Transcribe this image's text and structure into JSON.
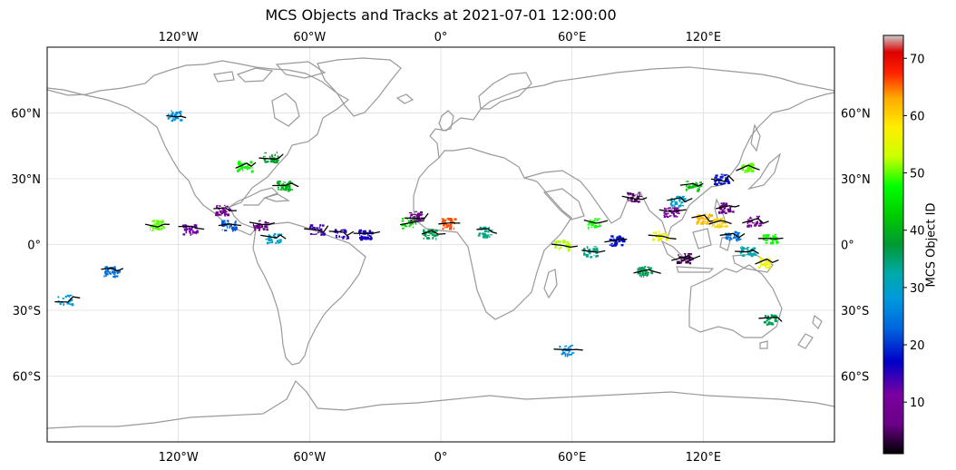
{
  "title": "MCS Objects and Tracks at 2021-07-01 12:00:00",
  "map": {
    "projection": "PlateCarree",
    "lon_range": [
      -180,
      180
    ],
    "lat_range": [
      -90,
      90
    ],
    "gridlines": true,
    "coastline_color": "#999999",
    "gridline_color": "#dddddd",
    "track_color": "#000000",
    "lon_ticks": [
      {
        "value": -120,
        "label": "120°W"
      },
      {
        "value": -60,
        "label": "60°W"
      },
      {
        "value": 0,
        "label": "0°"
      },
      {
        "value": 60,
        "label": "60°E"
      },
      {
        "value": 120,
        "label": "120°E"
      }
    ],
    "lat_ticks": [
      {
        "value": 60,
        "label": "60°N"
      },
      {
        "value": 30,
        "label": "30°N"
      },
      {
        "value": 0,
        "label": "0°"
      },
      {
        "value": -30,
        "label": "30°S"
      },
      {
        "value": -60,
        "label": "60°S"
      }
    ]
  },
  "colorbar": {
    "label": "MCS Object ID",
    "colormap": "nipy_spectral",
    "range": [
      1,
      74
    ],
    "ticks": [
      10,
      20,
      30,
      40,
      50,
      60,
      70
    ]
  },
  "mcs_objects": [
    {
      "lon": -122,
      "lat": 59,
      "id": 27
    },
    {
      "lon": -90,
      "lat": 36,
      "id": 48
    },
    {
      "lon": -78,
      "lat": 40,
      "id": 38
    },
    {
      "lon": -72,
      "lat": 27,
      "id": 40
    },
    {
      "lon": -100,
      "lat": 16,
      "id": 8
    },
    {
      "lon": -97,
      "lat": 9,
      "id": 22
    },
    {
      "lon": -115,
      "lat": 7,
      "id": 12
    },
    {
      "lon": -83,
      "lat": 9,
      "id": 6
    },
    {
      "lon": -77,
      "lat": 3,
      "id": 30
    },
    {
      "lon": -57,
      "lat": 7,
      "id": 14
    },
    {
      "lon": -46,
      "lat": 5,
      "id": 15
    },
    {
      "lon": -35,
      "lat": 5,
      "id": 16
    },
    {
      "lon": -130,
      "lat": 9,
      "id": 50
    },
    {
      "lon": -172,
      "lat": -25,
      "id": 28
    },
    {
      "lon": -151,
      "lat": -12,
      "id": 24
    },
    {
      "lon": -15,
      "lat": 10,
      "id": 44
    },
    {
      "lon": -12,
      "lat": 13,
      "id": 6
    },
    {
      "lon": -5,
      "lat": 5,
      "id": 36
    },
    {
      "lon": 20,
      "lat": 6,
      "id": 34
    },
    {
      "lon": 3,
      "lat": 10,
      "id": 66
    },
    {
      "lon": 55,
      "lat": 0,
      "id": 52
    },
    {
      "lon": 57,
      "lat": -48,
      "id": 26
    },
    {
      "lon": 70,
      "lat": 10,
      "id": 48
    },
    {
      "lon": 68,
      "lat": -3,
      "id": 34
    },
    {
      "lon": 80,
      "lat": 2,
      "id": 18
    },
    {
      "lon": 88,
      "lat": 22,
      "id": 5
    },
    {
      "lon": 93,
      "lat": -12,
      "id": 36
    },
    {
      "lon": 100,
      "lat": 4,
      "id": 56
    },
    {
      "lon": 105,
      "lat": 15,
      "id": 10
    },
    {
      "lon": 111,
      "lat": -6,
      "id": 4
    },
    {
      "lon": 115,
      "lat": 27,
      "id": 42
    },
    {
      "lon": 120,
      "lat": 12,
      "id": 62
    },
    {
      "lon": 128,
      "lat": 30,
      "id": 18
    },
    {
      "lon": 140,
      "lat": 35,
      "id": 50
    },
    {
      "lon": 130,
      "lat": 17,
      "id": 6
    },
    {
      "lon": 143,
      "lat": 11,
      "id": 8
    },
    {
      "lon": 150,
      "lat": 3,
      "id": 48
    },
    {
      "lon": 148,
      "lat": -8,
      "id": 56
    },
    {
      "lon": 140,
      "lat": -3,
      "id": 32
    },
    {
      "lon": 133,
      "lat": 4,
      "id": 24
    },
    {
      "lon": 150,
      "lat": -34,
      "id": 36
    },
    {
      "lon": 108,
      "lat": 20,
      "id": 30
    },
    {
      "lon": 127,
      "lat": 10,
      "id": 60
    }
  ]
}
